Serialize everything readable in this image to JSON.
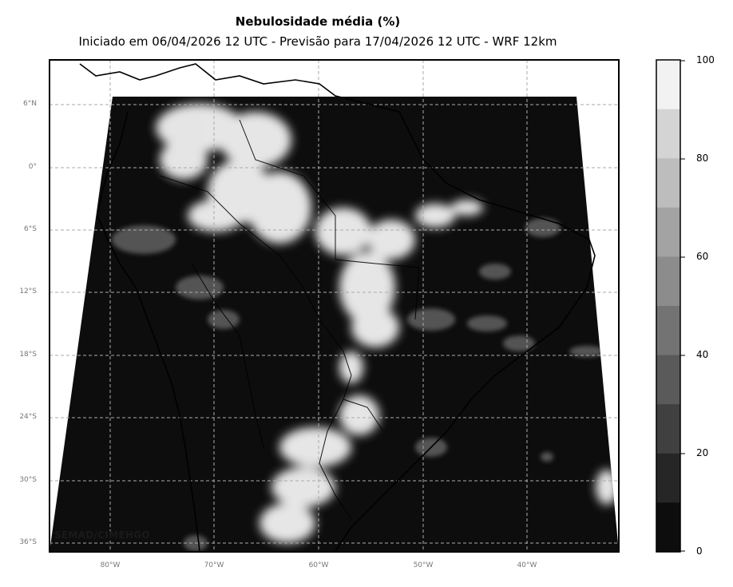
{
  "header": {
    "title": "Nebulosidade média (%)",
    "subtitle": "Iniciado em 06/04/2026 12 UTC - Previsão para 17/04/2026 12 UTC - WRF 12km"
  },
  "axes": {
    "lat_ticks": [
      "6°N",
      "0°",
      "6°S",
      "12°S",
      "18°S",
      "24°S",
      "30°S",
      "36°S"
    ],
    "lon_ticks": [
      "80°W",
      "70°W",
      "60°W",
      "50°W",
      "40°W"
    ]
  },
  "colorbar": {
    "ticks": [
      "100",
      "80",
      "60",
      "40",
      "20",
      "0"
    ],
    "levels": [
      "#f2f2f2",
      "#d4d4d4",
      "#bdbdbd",
      "#a3a3a3",
      "#8c8c8c",
      "#737373",
      "#5a5a5a",
      "#404040",
      "#262626",
      "#0d0d0d"
    ]
  },
  "credit": "SEMAD/CIMEHGO",
  "colors": {
    "field_dark": "#0d0d0d",
    "field_light": "#f2f2f2",
    "grid": "#aaaaaa",
    "border": "#000000"
  }
}
